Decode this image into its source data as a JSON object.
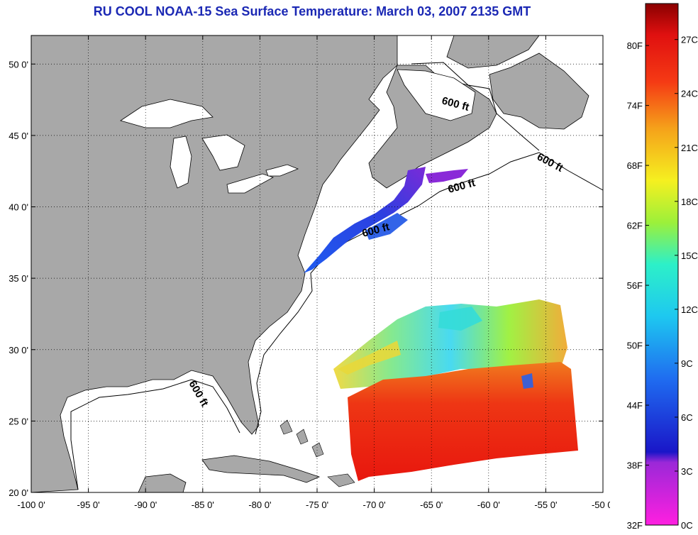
{
  "title": "RU COOL  NOAA-15  Sea Surface Temperature:  March 03, 2007 2135 GMT",
  "map": {
    "lon_range": [
      -100,
      -50
    ],
    "lat_range": [
      20,
      52
    ],
    "lon_ticks": [
      "-100 0'",
      "-95 0'",
      "-90 0'",
      "-85 0'",
      "-80 0'",
      "-75 0'",
      "-70 0'",
      "-65 0'",
      "-60 0'",
      "-55 0'",
      "-50 0'"
    ],
    "lat_ticks": [
      "50 0'",
      "45 0'",
      "40 0'",
      "35 0'",
      "30 0'",
      "25 0'",
      "20 0'"
    ],
    "depth_labels": [
      "600 ft",
      "600 ft",
      "600 ft",
      "600 ft",
      "600 ft"
    ],
    "colors": {
      "land": "#a8a8a8",
      "ocean": "#ffffff",
      "contour": "#000000"
    }
  },
  "colorbar": {
    "fahrenheit_labels": [
      "80F",
      "74F",
      "68F",
      "62F",
      "56F",
      "50F",
      "44F",
      "38F",
      "32F"
    ],
    "celsius_labels": [
      "27C",
      "24C",
      "21C",
      "18C",
      "15C",
      "12C",
      "9C",
      "6C",
      "3C",
      "0C"
    ],
    "range_c": [
      0,
      29
    ],
    "gradient": [
      "#ff1fe0",
      "#9b28d8",
      "#1a16c8",
      "#1f6cf0",
      "#1ec8f0",
      "#2df0c8",
      "#9cf03a",
      "#f5f020",
      "#f5a21a",
      "#f53a14",
      "#e01010",
      "#8a0000"
    ]
  }
}
